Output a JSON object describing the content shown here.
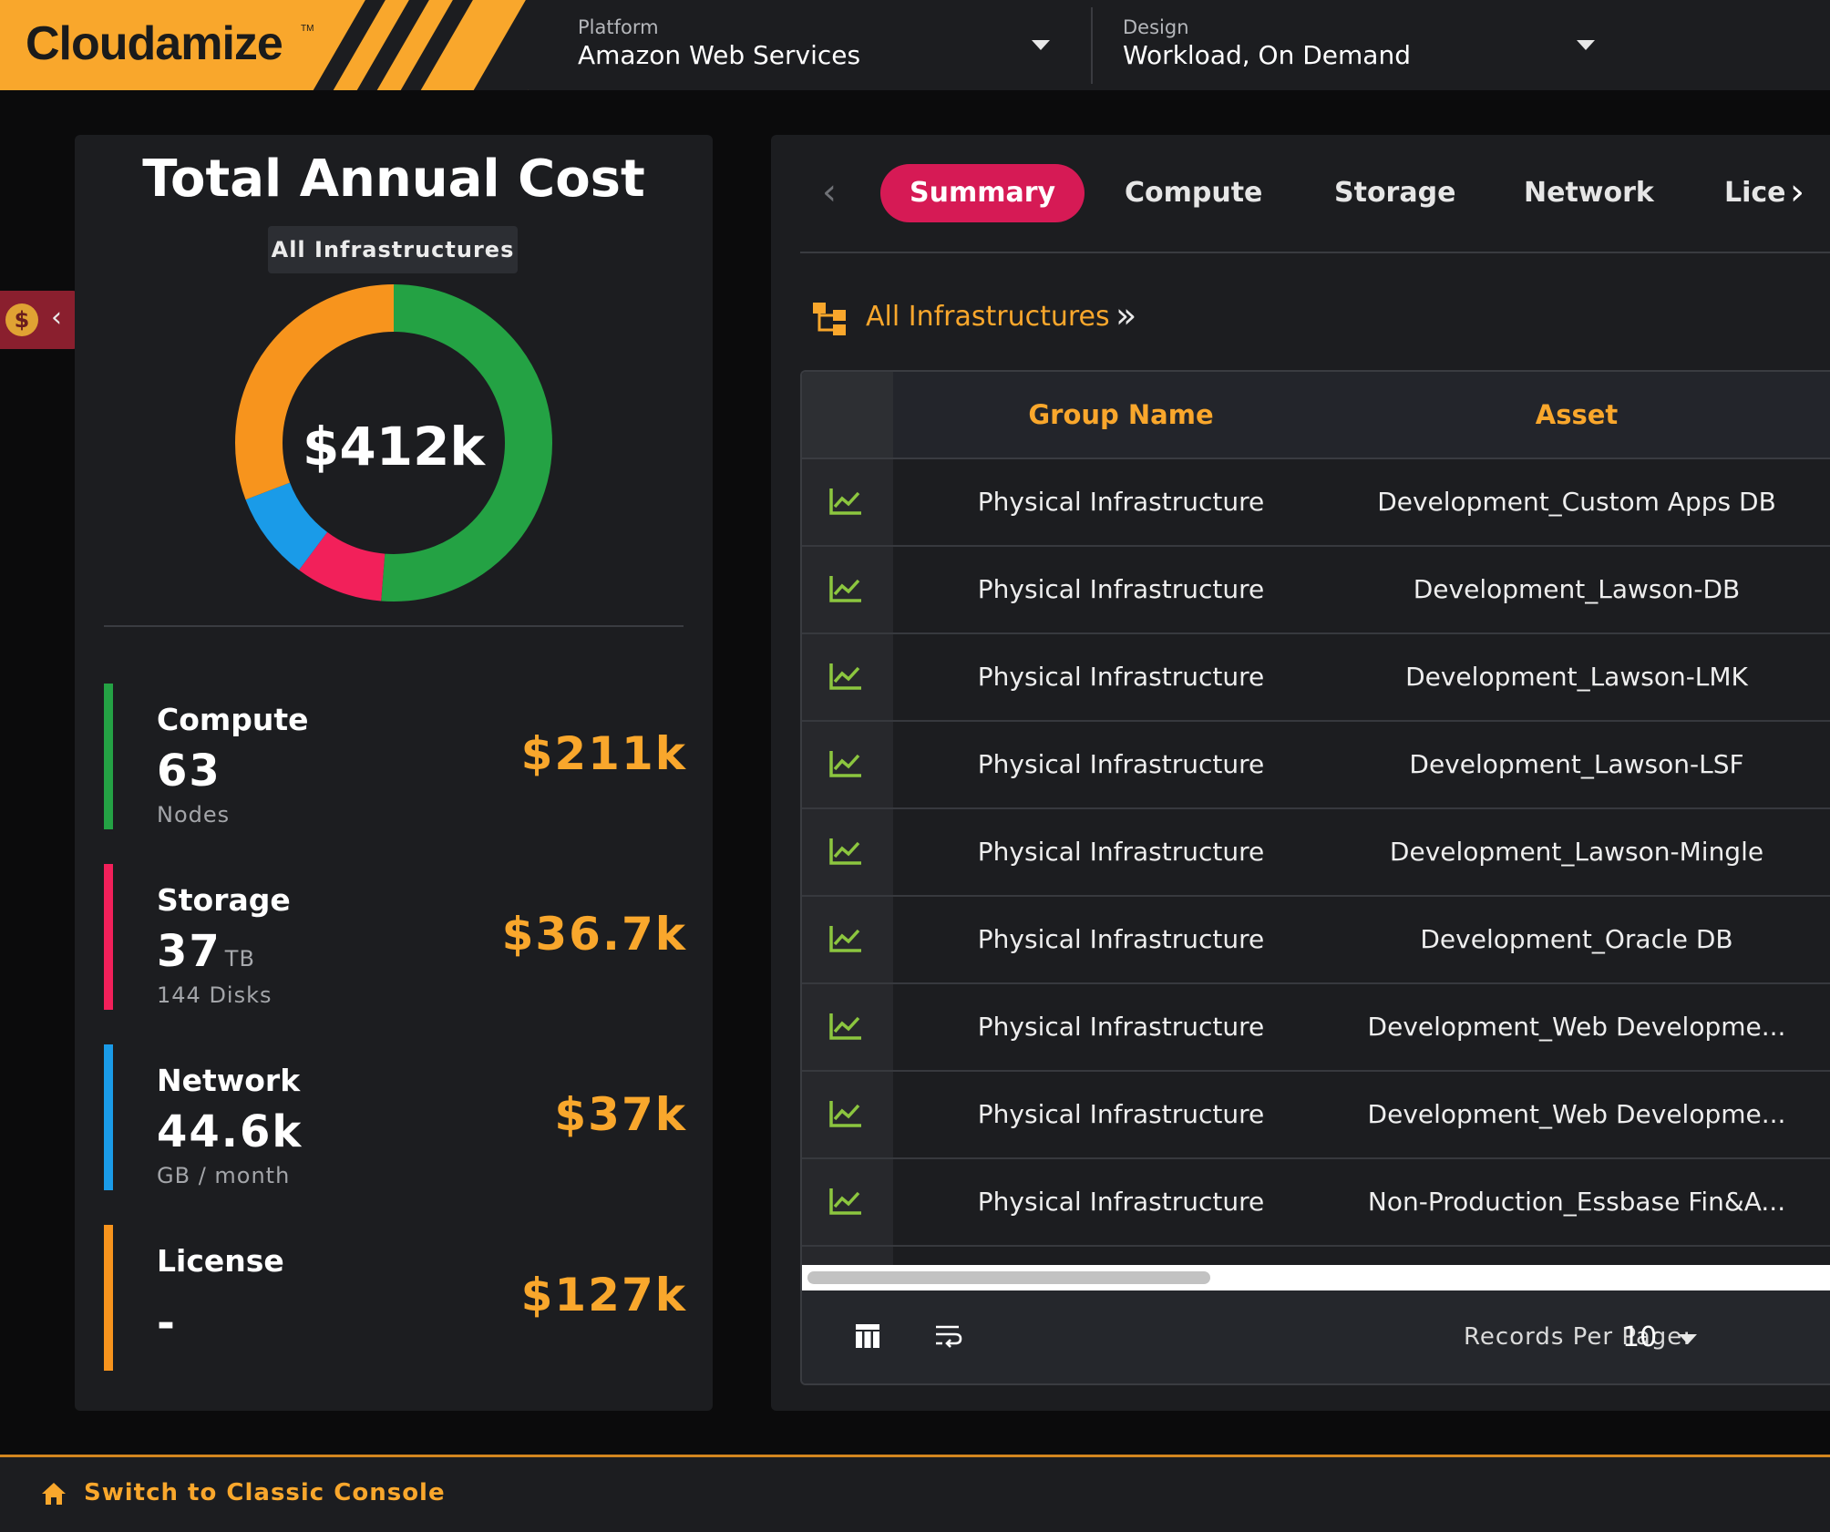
{
  "brand": {
    "name": "Cloudamize",
    "trademark": "TM",
    "color": "#f9a72c"
  },
  "header": {
    "platform": {
      "label": "Platform",
      "value": "Amazon Web Services"
    },
    "design": {
      "label": "Design",
      "value": "Workload, On Demand"
    }
  },
  "side_tab": {
    "icon": "dollar-coin-icon",
    "symbol": "$",
    "chevron": "‹"
  },
  "summary_panel": {
    "title": "Total Annual Cost",
    "scope": "All Infrastructures",
    "total": "$412k",
    "categories": [
      {
        "name": "Compute",
        "value": "63",
        "unit": "",
        "sub": "Nodes",
        "cost": "$211k",
        "color": "#24a244"
      },
      {
        "name": "Storage",
        "value": "37",
        "unit": "TB",
        "sub": "144 Disks",
        "cost": "$36.7k",
        "color": "#f2205a"
      },
      {
        "name": "Network",
        "value": "44.6k",
        "unit": "",
        "sub": "GB / month",
        "cost": "$37k",
        "color": "#1a9be8"
      },
      {
        "name": "License",
        "value": "-",
        "unit": "",
        "sub": "",
        "cost": "$127k",
        "color": "#f7941d"
      }
    ]
  },
  "chart_data": {
    "type": "pie",
    "title": "",
    "center_label": "$412k",
    "categories": [
      "Compute",
      "Storage",
      "Network",
      "License"
    ],
    "values": [
      211,
      36.7,
      37,
      127
    ],
    "unit": "$k",
    "colors": [
      "#24a244",
      "#f2205a",
      "#1a9be8",
      "#f7941d"
    ]
  },
  "tabs": {
    "prev": "‹",
    "next": "›",
    "items": [
      {
        "label": "Summary",
        "active": true
      },
      {
        "label": "Compute",
        "active": false
      },
      {
        "label": "Storage",
        "active": false
      },
      {
        "label": "Network",
        "active": false
      },
      {
        "label": "Lice",
        "active": false
      }
    ]
  },
  "breadcrumb": {
    "label": "All Infrastructures",
    "chevron": "»"
  },
  "table": {
    "columns": [
      "Group Name",
      "Asset"
    ],
    "row_icon": "trend-chart-icon",
    "rows": [
      {
        "group": "Physical Infrastructure",
        "asset": "Development_Custom Apps DB"
      },
      {
        "group": "Physical Infrastructure",
        "asset": "Development_Lawson-DB"
      },
      {
        "group": "Physical Infrastructure",
        "asset": "Development_Lawson-LMK"
      },
      {
        "group": "Physical Infrastructure",
        "asset": "Development_Lawson-LSF"
      },
      {
        "group": "Physical Infrastructure",
        "asset": "Development_Lawson-Mingle"
      },
      {
        "group": "Physical Infrastructure",
        "asset": "Development_Oracle DB"
      },
      {
        "group": "Physical Infrastructure",
        "asset": "Development_Web Developme..."
      },
      {
        "group": "Physical Infrastructure",
        "asset": "Development_Web Developme..."
      },
      {
        "group": "Physical Infrastructure",
        "asset": "Non-Production_Essbase Fin&A..."
      }
    ],
    "footer": {
      "records_label": "Records Per Page:",
      "records_value": "10"
    }
  },
  "bottom_bar": {
    "link": "Switch to Classic Console"
  }
}
